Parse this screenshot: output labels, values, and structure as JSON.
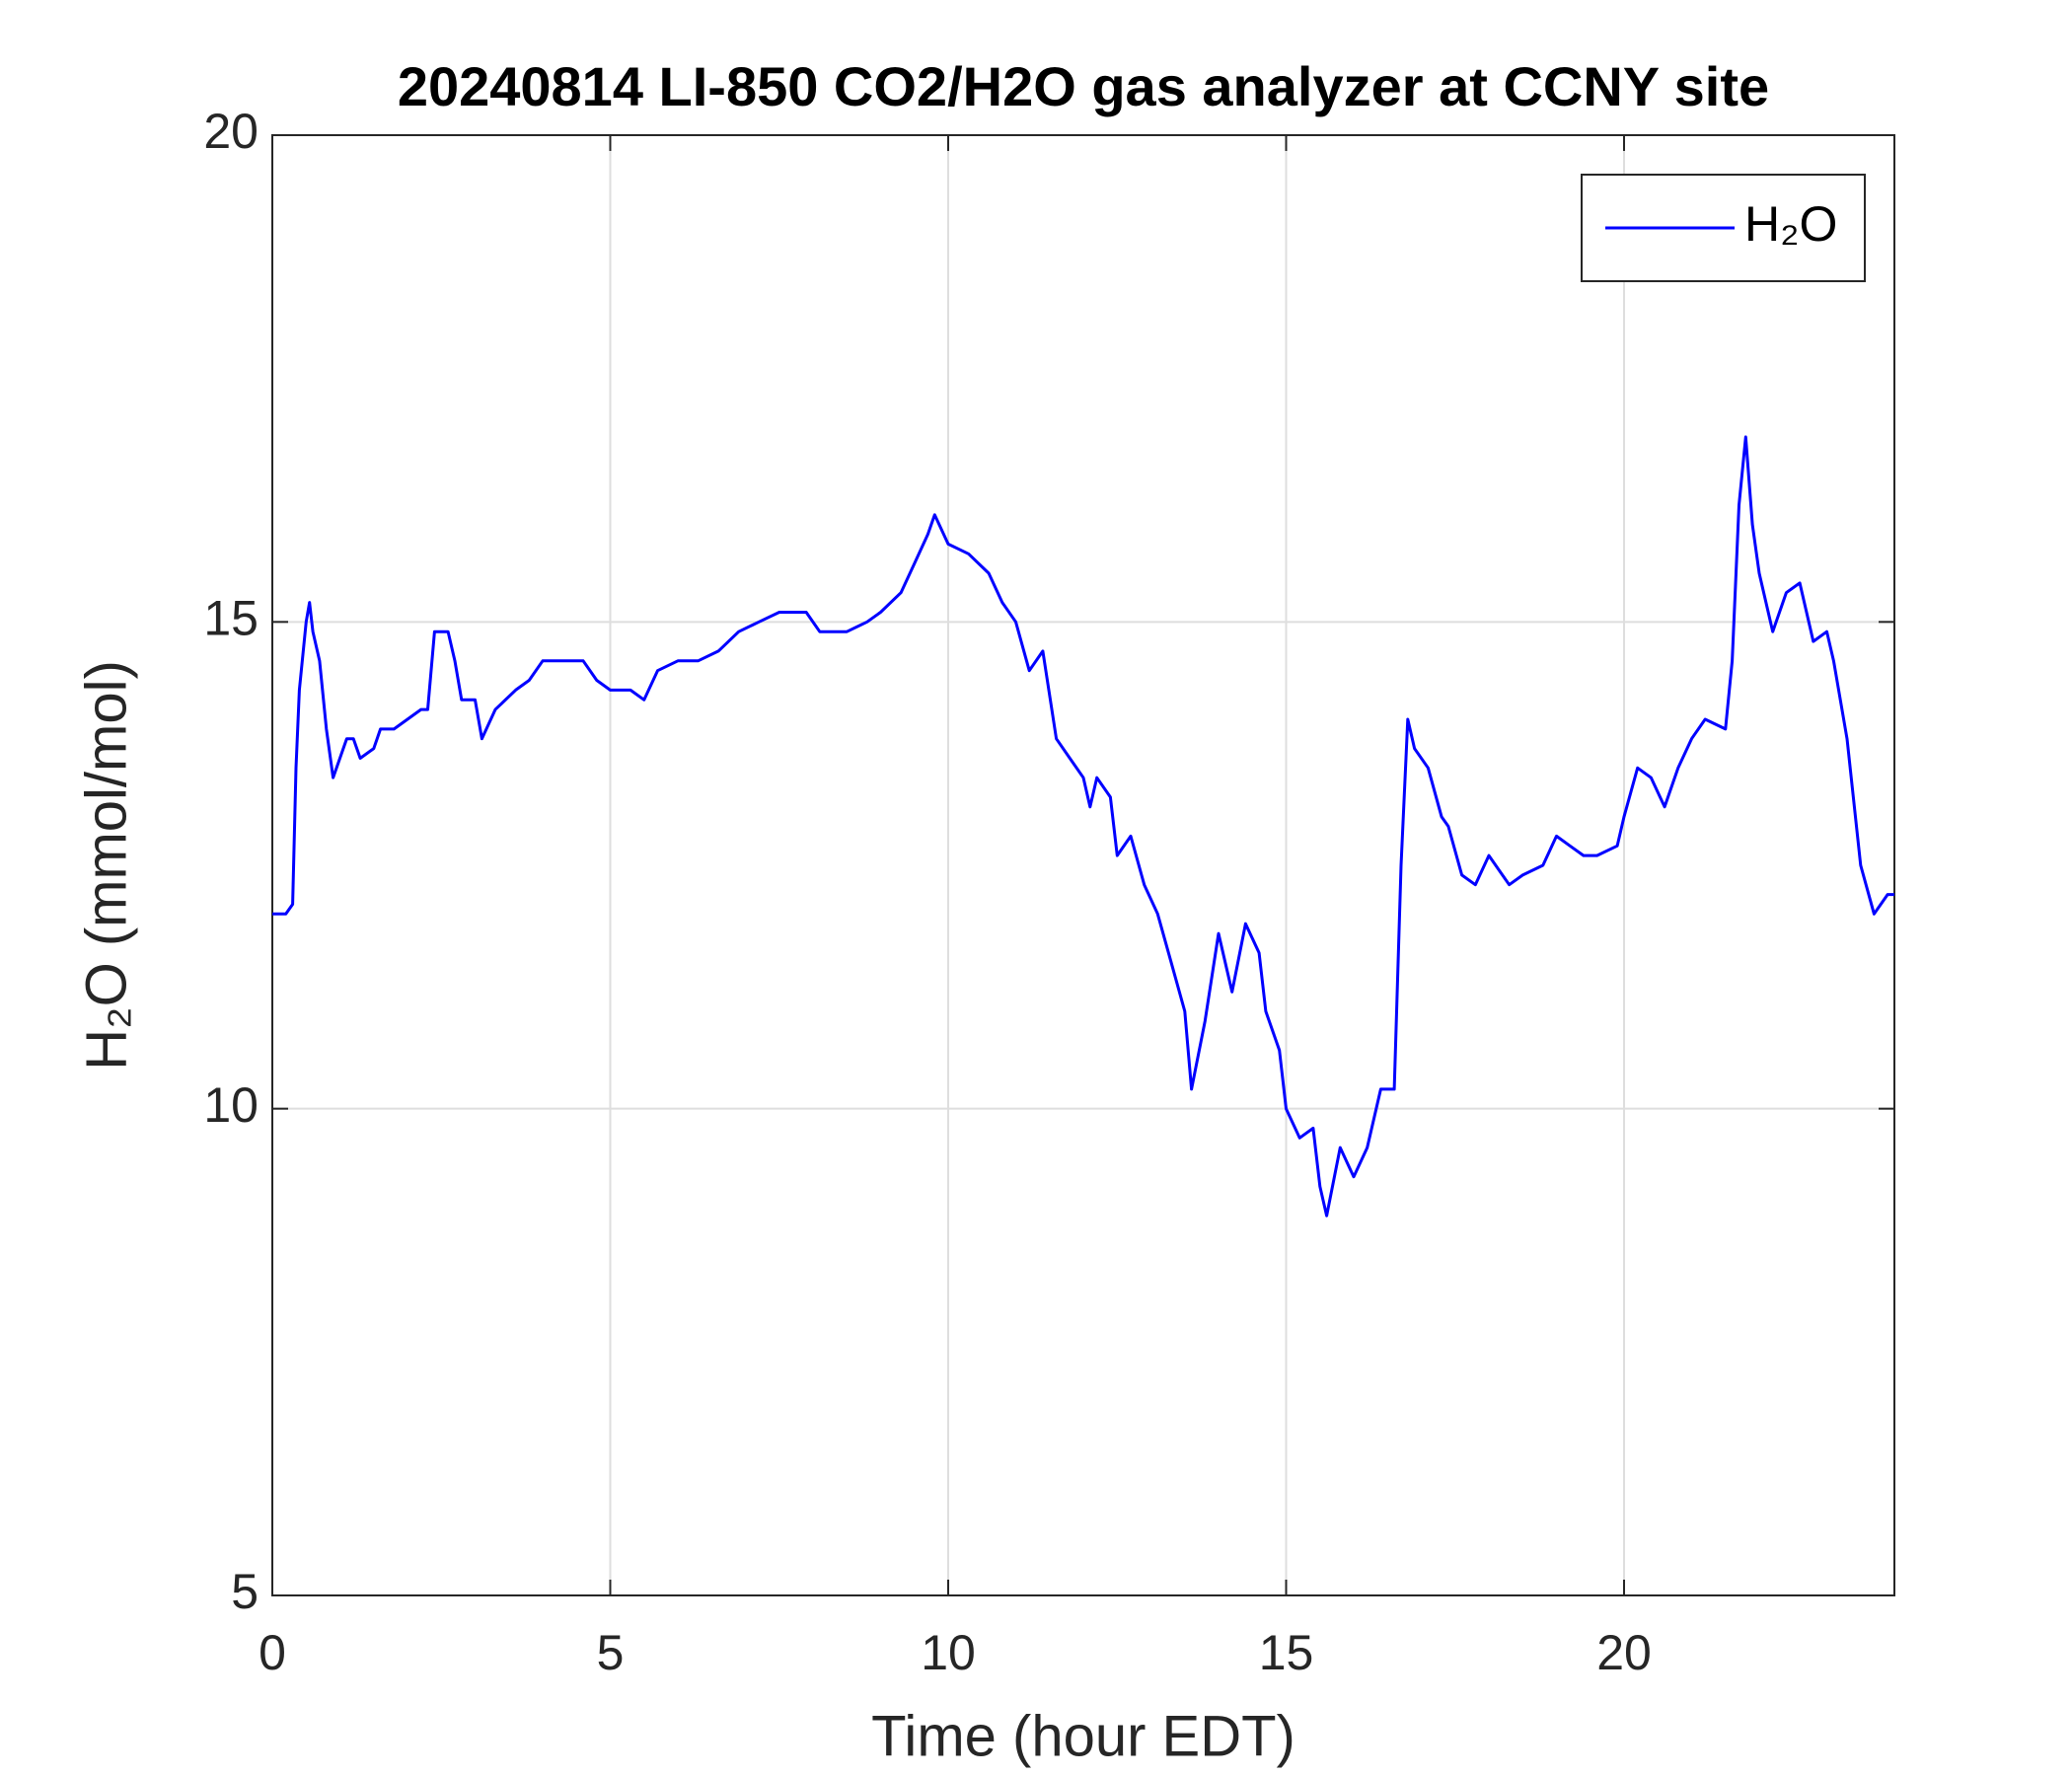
{
  "chart_data": {
    "type": "line",
    "title": "20240814 LI-850 CO2/H2O gas analyzer at CCNY site",
    "x_label": "Time (hour EDT)",
    "y_label": "H₂O (mmol/mol)",
    "x": [
      0,
      0.2,
      0.3,
      0.35,
      0.4,
      0.5,
      0.55,
      0.6,
      0.7,
      0.8,
      0.9,
      1.0,
      1.1,
      1.2,
      1.3,
      1.5,
      1.6,
      1.8,
      2.0,
      2.2,
      2.3,
      2.4,
      2.6,
      2.7,
      2.8,
      3.0,
      3.1,
      3.3,
      3.6,
      3.8,
      4.0,
      4.3,
      4.6,
      4.8,
      5.0,
      5.3,
      5.5,
      5.7,
      6.0,
      6.3,
      6.6,
      6.9,
      7.2,
      7.5,
      7.9,
      8.1,
      8.5,
      8.8,
      9.0,
      9.3,
      9.5,
      9.7,
      9.8,
      10.0,
      10.3,
      10.6,
      10.8,
      11.0,
      11.2,
      11.4,
      11.6,
      11.8,
      12.0,
      12.1,
      12.2,
      12.4,
      12.5,
      12.7,
      12.9,
      13.1,
      13.3,
      13.5,
      13.6,
      13.8,
      14.0,
      14.2,
      14.4,
      14.6,
      14.7,
      14.9,
      15.0,
      15.2,
      15.4,
      15.5,
      15.6,
      15.8,
      16.0,
      16.2,
      16.4,
      16.6,
      16.7,
      16.8,
      16.9,
      17.1,
      17.3,
      17.4,
      17.6,
      17.8,
      18.0,
      18.3,
      18.5,
      18.8,
      19.0,
      19.2,
      19.4,
      19.6,
      19.9,
      20.0,
      20.2,
      20.4,
      20.6,
      20.8,
      21.0,
      21.2,
      21.5,
      21.6,
      21.7,
      21.8,
      21.9,
      22.0,
      22.2,
      22.4,
      22.6,
      22.8,
      23.0,
      23.1,
      23.3,
      23.5,
      23.7,
      23.9,
      24.0
    ],
    "series": [
      {
        "name": "H₂O",
        "color": "#0000ff",
        "values": [
          12.0,
          12.0,
          12.1,
          13.5,
          14.3,
          15.0,
          15.2,
          14.9,
          14.6,
          13.9,
          13.4,
          13.6,
          13.8,
          13.8,
          13.6,
          13.7,
          13.9,
          13.9,
          14.0,
          14.1,
          14.1,
          14.9,
          14.9,
          14.6,
          14.2,
          14.2,
          13.8,
          14.1,
          14.3,
          14.4,
          14.6,
          14.6,
          14.6,
          14.4,
          14.3,
          14.3,
          14.2,
          14.5,
          14.6,
          14.6,
          14.7,
          14.9,
          15.0,
          15.1,
          15.1,
          14.9,
          14.9,
          15.0,
          15.1,
          15.3,
          15.6,
          15.9,
          16.1,
          15.8,
          15.7,
          15.5,
          15.2,
          15.0,
          14.5,
          14.7,
          13.8,
          13.6,
          13.4,
          13.1,
          13.4,
          13.2,
          12.6,
          12.8,
          12.3,
          12.0,
          11.5,
          11.0,
          10.2,
          10.9,
          11.8,
          11.2,
          11.9,
          11.6,
          11.0,
          10.6,
          10.0,
          9.7,
          9.8,
          9.2,
          8.9,
          9.6,
          9.3,
          9.6,
          10.2,
          10.2,
          12.5,
          14.0,
          13.7,
          13.5,
          13.0,
          12.9,
          12.4,
          12.3,
          12.6,
          12.3,
          12.4,
          12.5,
          12.8,
          12.7,
          12.6,
          12.6,
          12.7,
          13.0,
          13.5,
          13.4,
          13.1,
          13.5,
          13.8,
          14.0,
          13.9,
          14.6,
          16.2,
          16.9,
          16.0,
          15.5,
          14.9,
          15.3,
          15.4,
          14.8,
          14.9,
          14.6,
          13.8,
          12.5,
          12.0,
          12.2,
          12.2
        ]
      }
    ],
    "xlim": [
      0,
      24
    ],
    "xticks": [
      0,
      5,
      10,
      15,
      20
    ],
    "ylim": [
      5,
      20
    ],
    "yticks": [
      5,
      10,
      15,
      20
    ],
    "grid": true,
    "legend": "top-right"
  }
}
